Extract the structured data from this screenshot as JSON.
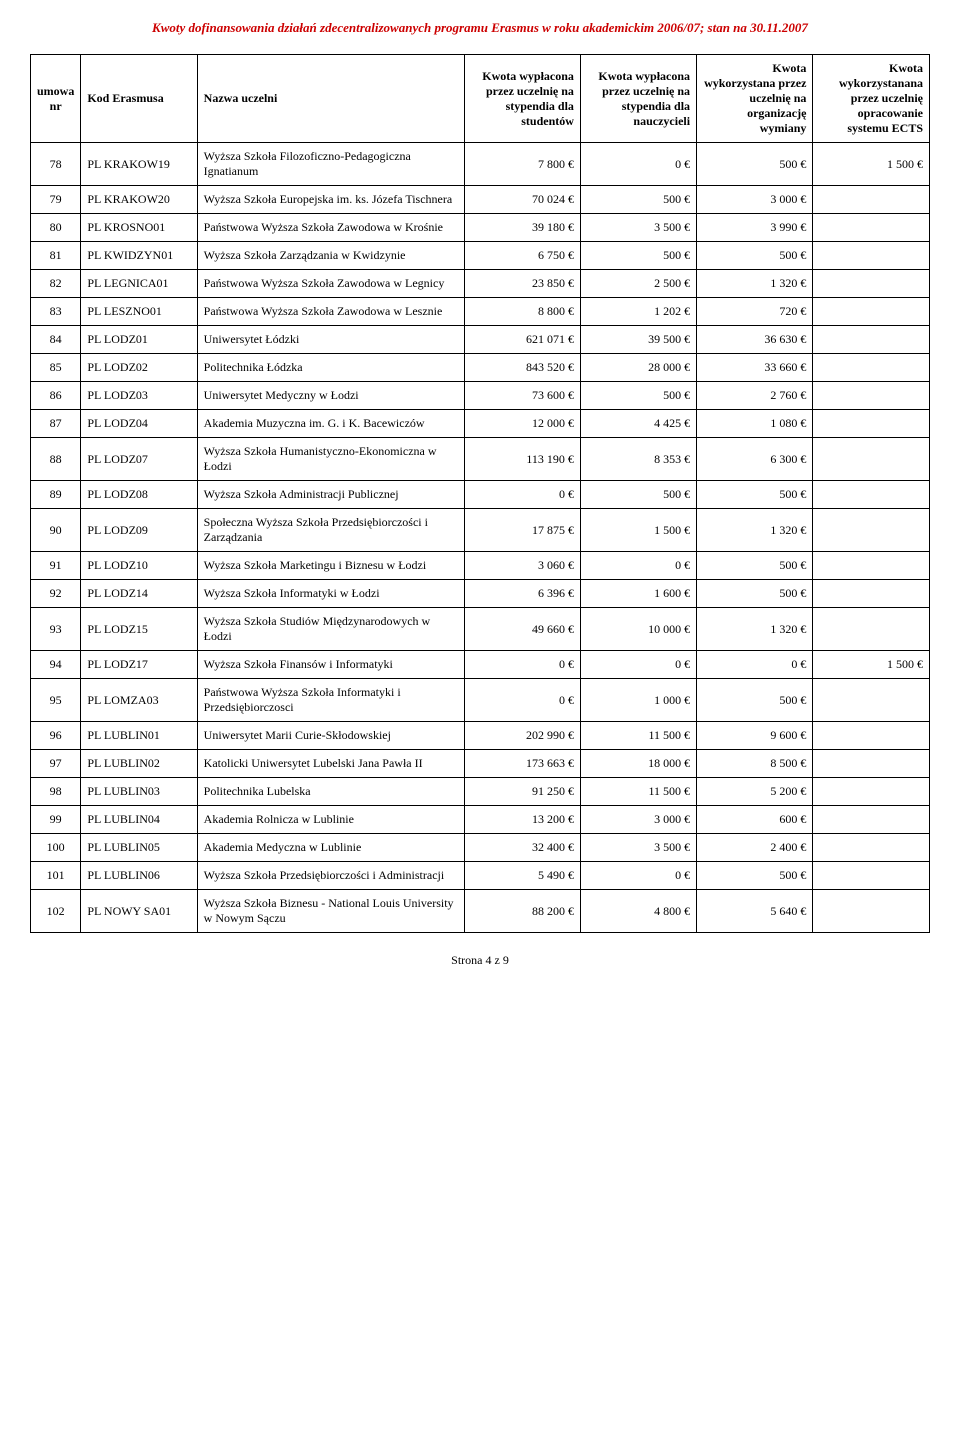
{
  "header_title": "Kwoty dofinansowania działań zdecentralizowanych programu Erasmus w roku akademickim 2006/07; stan na 30.11.2007",
  "columns": {
    "c0": "umowa nr",
    "c1": "Kod Erasmusa",
    "c2": "Nazwa uczelni",
    "c3": "Kwota wypłacona przez uczelnię na stypendia dla studentów",
    "c4": "Kwota wypłacona przez uczelnię na stypendia dla nauczycieli",
    "c5": "Kwota wykorzystana przez uczelnię na organizację wymiany",
    "c6": "Kwota wykorzystanana przez uczelnię opracowanie systemu ECTS"
  },
  "rows": [
    {
      "nr": "78",
      "kod": "PL KRAKOW19",
      "nazwa": "Wyższa Szkoła Filozoficzno-Pedagogiczna Ignatianum",
      "k1": "7 800 €",
      "k2": "0 €",
      "k3": "500 €",
      "k4": "1 500 €"
    },
    {
      "nr": "79",
      "kod": "PL KRAKOW20",
      "nazwa": "Wyższa Szkoła Europejska im. ks. Józefa Tischnera",
      "k1": "70 024 €",
      "k2": "500 €",
      "k3": "3 000 €",
      "k4": ""
    },
    {
      "nr": "80",
      "kod": "PL KROSNO01",
      "nazwa": "Państwowa Wyższa Szkoła Zawodowa w Krośnie",
      "k1": "39 180 €",
      "k2": "3 500 €",
      "k3": "3 990 €",
      "k4": ""
    },
    {
      "nr": "81",
      "kod": "PL KWIDZYN01",
      "nazwa": "Wyższa Szkoła Zarządzania w Kwidzynie",
      "k1": "6 750 €",
      "k2": "500 €",
      "k3": "500 €",
      "k4": ""
    },
    {
      "nr": "82",
      "kod": "PL LEGNICA01",
      "nazwa": "Państwowa Wyższa Szkoła Zawodowa w Legnicy",
      "k1": "23 850 €",
      "k2": "2 500 €",
      "k3": "1 320 €",
      "k4": ""
    },
    {
      "nr": "83",
      "kod": "PL LESZNO01",
      "nazwa": "Państwowa Wyższa Szkoła Zawodowa w Lesznie",
      "k1": "8 800 €",
      "k2": "1 202 €",
      "k3": "720 €",
      "k4": ""
    },
    {
      "nr": "84",
      "kod": "PL LODZ01",
      "nazwa": "Uniwersytet Łódzki",
      "k1": "621 071 €",
      "k2": "39 500 €",
      "k3": "36 630 €",
      "k4": ""
    },
    {
      "nr": "85",
      "kod": "PL LODZ02",
      "nazwa": "Politechnika Łódzka",
      "k1": "843 520 €",
      "k2": "28 000 €",
      "k3": "33 660 €",
      "k4": ""
    },
    {
      "nr": "86",
      "kod": "PL LODZ03",
      "nazwa": "Uniwersytet Medyczny w Łodzi",
      "k1": "73 600 €",
      "k2": "500 €",
      "k3": "2 760 €",
      "k4": ""
    },
    {
      "nr": "87",
      "kod": "PL LODZ04",
      "nazwa": "Akademia Muzyczna im. G. i K. Bacewiczów",
      "k1": "12 000 €",
      "k2": "4 425 €",
      "k3": "1 080 €",
      "k4": ""
    },
    {
      "nr": "88",
      "kod": "PL LODZ07",
      "nazwa": "Wyższa Szkoła Humanistyczno-Ekonomiczna w Łodzi",
      "k1": "113 190 €",
      "k2": "8 353 €",
      "k3": "6 300 €",
      "k4": ""
    },
    {
      "nr": "89",
      "kod": "PL LODZ08",
      "nazwa": "Wyższa Szkoła Administracji Publicznej",
      "k1": "0 €",
      "k2": "500 €",
      "k3": "500 €",
      "k4": ""
    },
    {
      "nr": "90",
      "kod": "PL LODZ09",
      "nazwa": "Społeczna Wyższa Szkoła Przedsiębiorczości i Zarządzania",
      "k1": "17 875 €",
      "k2": "1 500 €",
      "k3": "1 320 €",
      "k4": ""
    },
    {
      "nr": "91",
      "kod": "PL LODZ10",
      "nazwa": "Wyższa Szkoła Marketingu i Biznesu w Łodzi",
      "k1": "3 060 €",
      "k2": "0 €",
      "k3": "500 €",
      "k4": ""
    },
    {
      "nr": "92",
      "kod": "PL LODZ14",
      "nazwa": "Wyższa Szkoła Informatyki w Łodzi",
      "k1": "6 396 €",
      "k2": "1 600 €",
      "k3": "500 €",
      "k4": ""
    },
    {
      "nr": "93",
      "kod": "PL LODZ15",
      "nazwa": "Wyższa Szkoła Studiów Międzynarodowych w Łodzi",
      "k1": "49 660 €",
      "k2": "10 000 €",
      "k3": "1 320 €",
      "k4": ""
    },
    {
      "nr": "94",
      "kod": "PL LODZ17",
      "nazwa": "Wyższa Szkoła Finansów i Informatyki",
      "k1": "0 €",
      "k2": "0 €",
      "k3": "0 €",
      "k4": "1 500 €"
    },
    {
      "nr": "95",
      "kod": "PL LOMZA03",
      "nazwa": "Państwowa Wyższa Szkoła Informatyki i Przedsiębiorczosci",
      "k1": "0 €",
      "k2": "1 000 €",
      "k3": "500 €",
      "k4": ""
    },
    {
      "nr": "96",
      "kod": "PL LUBLIN01",
      "nazwa": "Uniwersytet Marii Curie-Skłodowskiej",
      "k1": "202 990 €",
      "k2": "11 500 €",
      "k3": "9 600 €",
      "k4": ""
    },
    {
      "nr": "97",
      "kod": "PL LUBLIN02",
      "nazwa": "Katolicki Uniwersytet Lubelski Jana Pawła II",
      "k1": "173 663 €",
      "k2": "18 000 €",
      "k3": "8 500 €",
      "k4": ""
    },
    {
      "nr": "98",
      "kod": "PL LUBLIN03",
      "nazwa": "Politechnika Lubelska",
      "k1": "91 250 €",
      "k2": "11 500 €",
      "k3": "5 200 €",
      "k4": ""
    },
    {
      "nr": "99",
      "kod": "PL LUBLIN04",
      "nazwa": "Akademia Rolnicza w Lublinie",
      "k1": "13 200 €",
      "k2": "3 000 €",
      "k3": "600 €",
      "k4": ""
    },
    {
      "nr": "100",
      "kod": "PL LUBLIN05",
      "nazwa": "Akademia Medyczna w Lublinie",
      "k1": "32 400 €",
      "k2": "3 500 €",
      "k3": "2 400 €",
      "k4": ""
    },
    {
      "nr": "101",
      "kod": "PL LUBLIN06",
      "nazwa": "Wyższa Szkoła Przedsiębiorczości i Administracji",
      "k1": "5 490 €",
      "k2": "0 €",
      "k3": "500 €",
      "k4": ""
    },
    {
      "nr": "102",
      "kod": "PL NOWY SA01",
      "nazwa": "Wyższa Szkoła Biznesu - National Louis University w Nowym Sączu",
      "k1": "88 200 €",
      "k2": "4 800 €",
      "k3": "5 640 €",
      "k4": ""
    }
  ],
  "footer": "Strona 4 z 9",
  "colors": {
    "header_text": "#cc0000",
    "border": "#000000",
    "text": "#000000",
    "background": "#ffffff"
  }
}
